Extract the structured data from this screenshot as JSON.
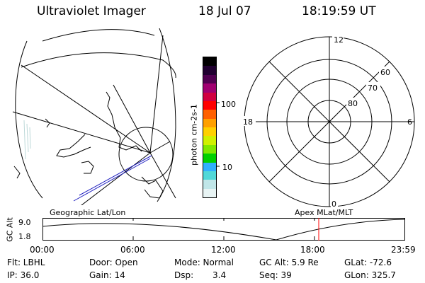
{
  "header": {
    "title": "Ultraviolet Imager",
    "date": "18 Jul 07",
    "time": "18:19:59 UT"
  },
  "colorbar": {
    "unit_label": "photon cm-2s-1",
    "ticks": [
      "100",
      "10"
    ],
    "colors": [
      "#e8f4f4",
      "#c0e6e8",
      "#50d8d8",
      "#30b0ff",
      "#00d000",
      "#80e800",
      "#d0f000",
      "#ffd000",
      "#ffa000",
      "#ff6000",
      "#ff0000",
      "#d00040",
      "#a00070",
      "#500050",
      "#200030",
      "#000000"
    ]
  },
  "polar": {
    "hour_labels": {
      "top": "12",
      "left": "18",
      "right": "6",
      "bottom": "0"
    },
    "lat_labels": [
      "60",
      "70",
      "80"
    ]
  },
  "timeline": {
    "left_label": "Geographic Lat/Lon",
    "right_label": "Apex MLat/MLT",
    "axis_label": "GC Alt",
    "y_ticks": [
      "9.0",
      "1.8"
    ],
    "x_ticks": [
      "00:00",
      "06:00",
      "12:00",
      "18:00",
      "23:59"
    ],
    "marker_color": "#ff0000"
  },
  "footer": {
    "row1": {
      "flt": "Flt: LBHL",
      "door": "Door: Open",
      "mode": "Mode: Normal",
      "gcalt": "GC Alt: 5.9 Re",
      "glat": "GLat: -72.6"
    },
    "row2": {
      "ip": "IP: 36.0",
      "gain": "Gain: 14",
      "dsp_label": "Dsp:",
      "dsp_value": "3.4",
      "seq": "Seq: 39",
      "glon": "GLon: 325.7"
    }
  }
}
